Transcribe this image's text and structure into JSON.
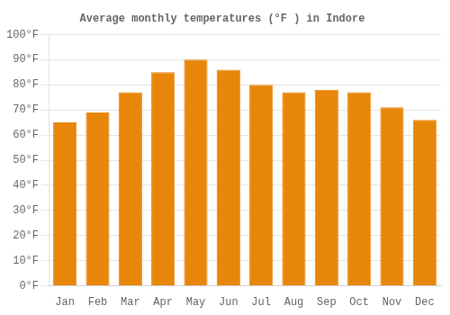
{
  "chart_data": {
    "type": "bar",
    "title": "Average monthly temperatures (°F ) in Indore",
    "categories": [
      "Jan",
      "Feb",
      "Mar",
      "Apr",
      "May",
      "Jun",
      "Jul",
      "Aug",
      "Sep",
      "Oct",
      "Nov",
      "Dec"
    ],
    "values": [
      65,
      69,
      77,
      85,
      90,
      86,
      80,
      77,
      78,
      77,
      71,
      66
    ],
    "color": "#E8860A",
    "ylim": [
      0,
      100
    ],
    "yticks": [
      {
        "value": 0,
        "label": "0°F"
      },
      {
        "value": 10,
        "label": "10°F"
      },
      {
        "value": 20,
        "label": "20°F"
      },
      {
        "value": 30,
        "label": "30°F"
      },
      {
        "value": 40,
        "label": "40°F"
      },
      {
        "value": 50,
        "label": "50°F"
      },
      {
        "value": 60,
        "label": "60°F"
      },
      {
        "value": 70,
        "label": "70°F"
      },
      {
        "value": 80,
        "label": "80°F"
      },
      {
        "value": 90,
        "label": "90°F"
      },
      {
        "value": 100,
        "label": "100°F"
      }
    ],
    "grid": true
  }
}
